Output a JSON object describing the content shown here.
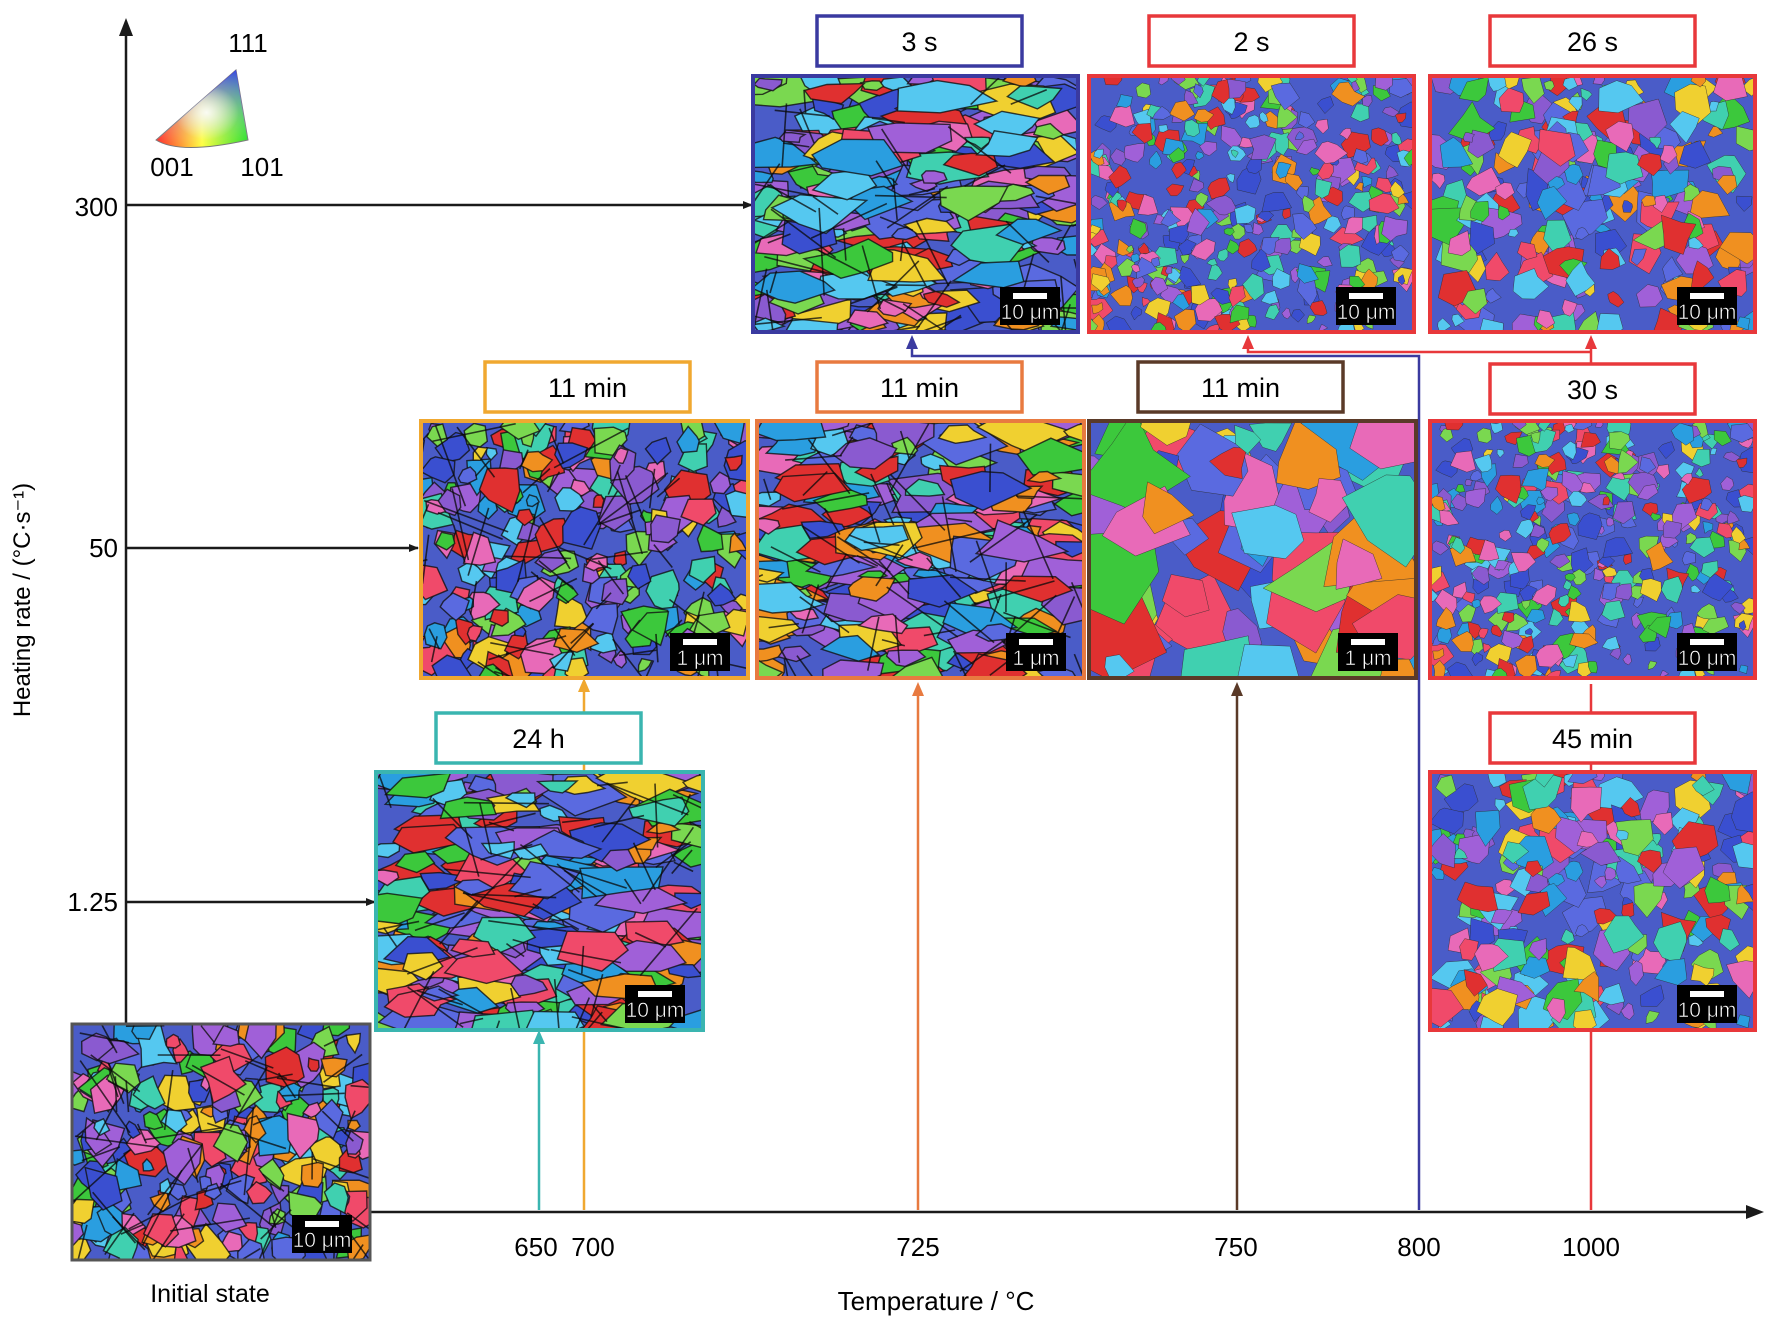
{
  "axes": {
    "y_title": "Heating rate / (°C·s⁻¹)",
    "x_title": "Temperature / °C",
    "y_ticks": [
      "300",
      "50",
      "1.25"
    ],
    "x_ticks": [
      "650",
      "700",
      "725",
      "750",
      "800",
      "1000"
    ]
  },
  "ipf_legend": {
    "label_111": "111",
    "label_001": "001",
    "label_101": "101"
  },
  "initial_state": {
    "label": "Initial state",
    "scale": "10 μm"
  },
  "panels": [
    {
      "id": "p300-800",
      "time": "3 s",
      "scale": "10 μm",
      "color": "#3a3aa0",
      "heating_rate": "300",
      "temperature": "800"
    },
    {
      "id": "p300-1000a",
      "time": "2 s",
      "scale": "10 μm",
      "color": "#e8383b",
      "heating_rate": "300",
      "temperature": "1000"
    },
    {
      "id": "p300-1000b",
      "time": "26 s",
      "scale": "10 μm",
      "color": "#e8383b",
      "heating_rate": "300",
      "temperature": "1000"
    },
    {
      "id": "p50-700",
      "time": "11 min",
      "scale": "1 μm",
      "color": "#f0a830",
      "heating_rate": "50",
      "temperature": "700"
    },
    {
      "id": "p50-725",
      "time": "11 min",
      "scale": "1 μm",
      "color": "#e87a40",
      "heating_rate": "50",
      "temperature": "725"
    },
    {
      "id": "p50-750",
      "time": "11 min",
      "scale": "1 μm",
      "color": "#5a3a28",
      "heating_rate": "50",
      "temperature": "750"
    },
    {
      "id": "p50-1000",
      "time": "30 s",
      "scale": "10 μm",
      "color": "#e8383b",
      "heating_rate": "50",
      "temperature": "1000"
    },
    {
      "id": "p125-650",
      "time": "24 h",
      "scale": "10 μm",
      "color": "#3ab5b0",
      "heating_rate": "1.25",
      "temperature": "650"
    },
    {
      "id": "p125-1000",
      "time": "45 min",
      "scale": "10 μm",
      "color": "#e8383b",
      "heating_rate": "1.25",
      "temperature": "1000"
    }
  ],
  "colors": {
    "axis": "#1a1a1a",
    "grain_palette": [
      "#3a4fd0",
      "#5a6ae0",
      "#2a9ee0",
      "#55c8f0",
      "#3cc83c",
      "#7ad850",
      "#e03030",
      "#f04a6a",
      "#e86ab8",
      "#a060d8",
      "#f0d030",
      "#f09020",
      "#40d0b0",
      "#8a5ad0"
    ]
  }
}
